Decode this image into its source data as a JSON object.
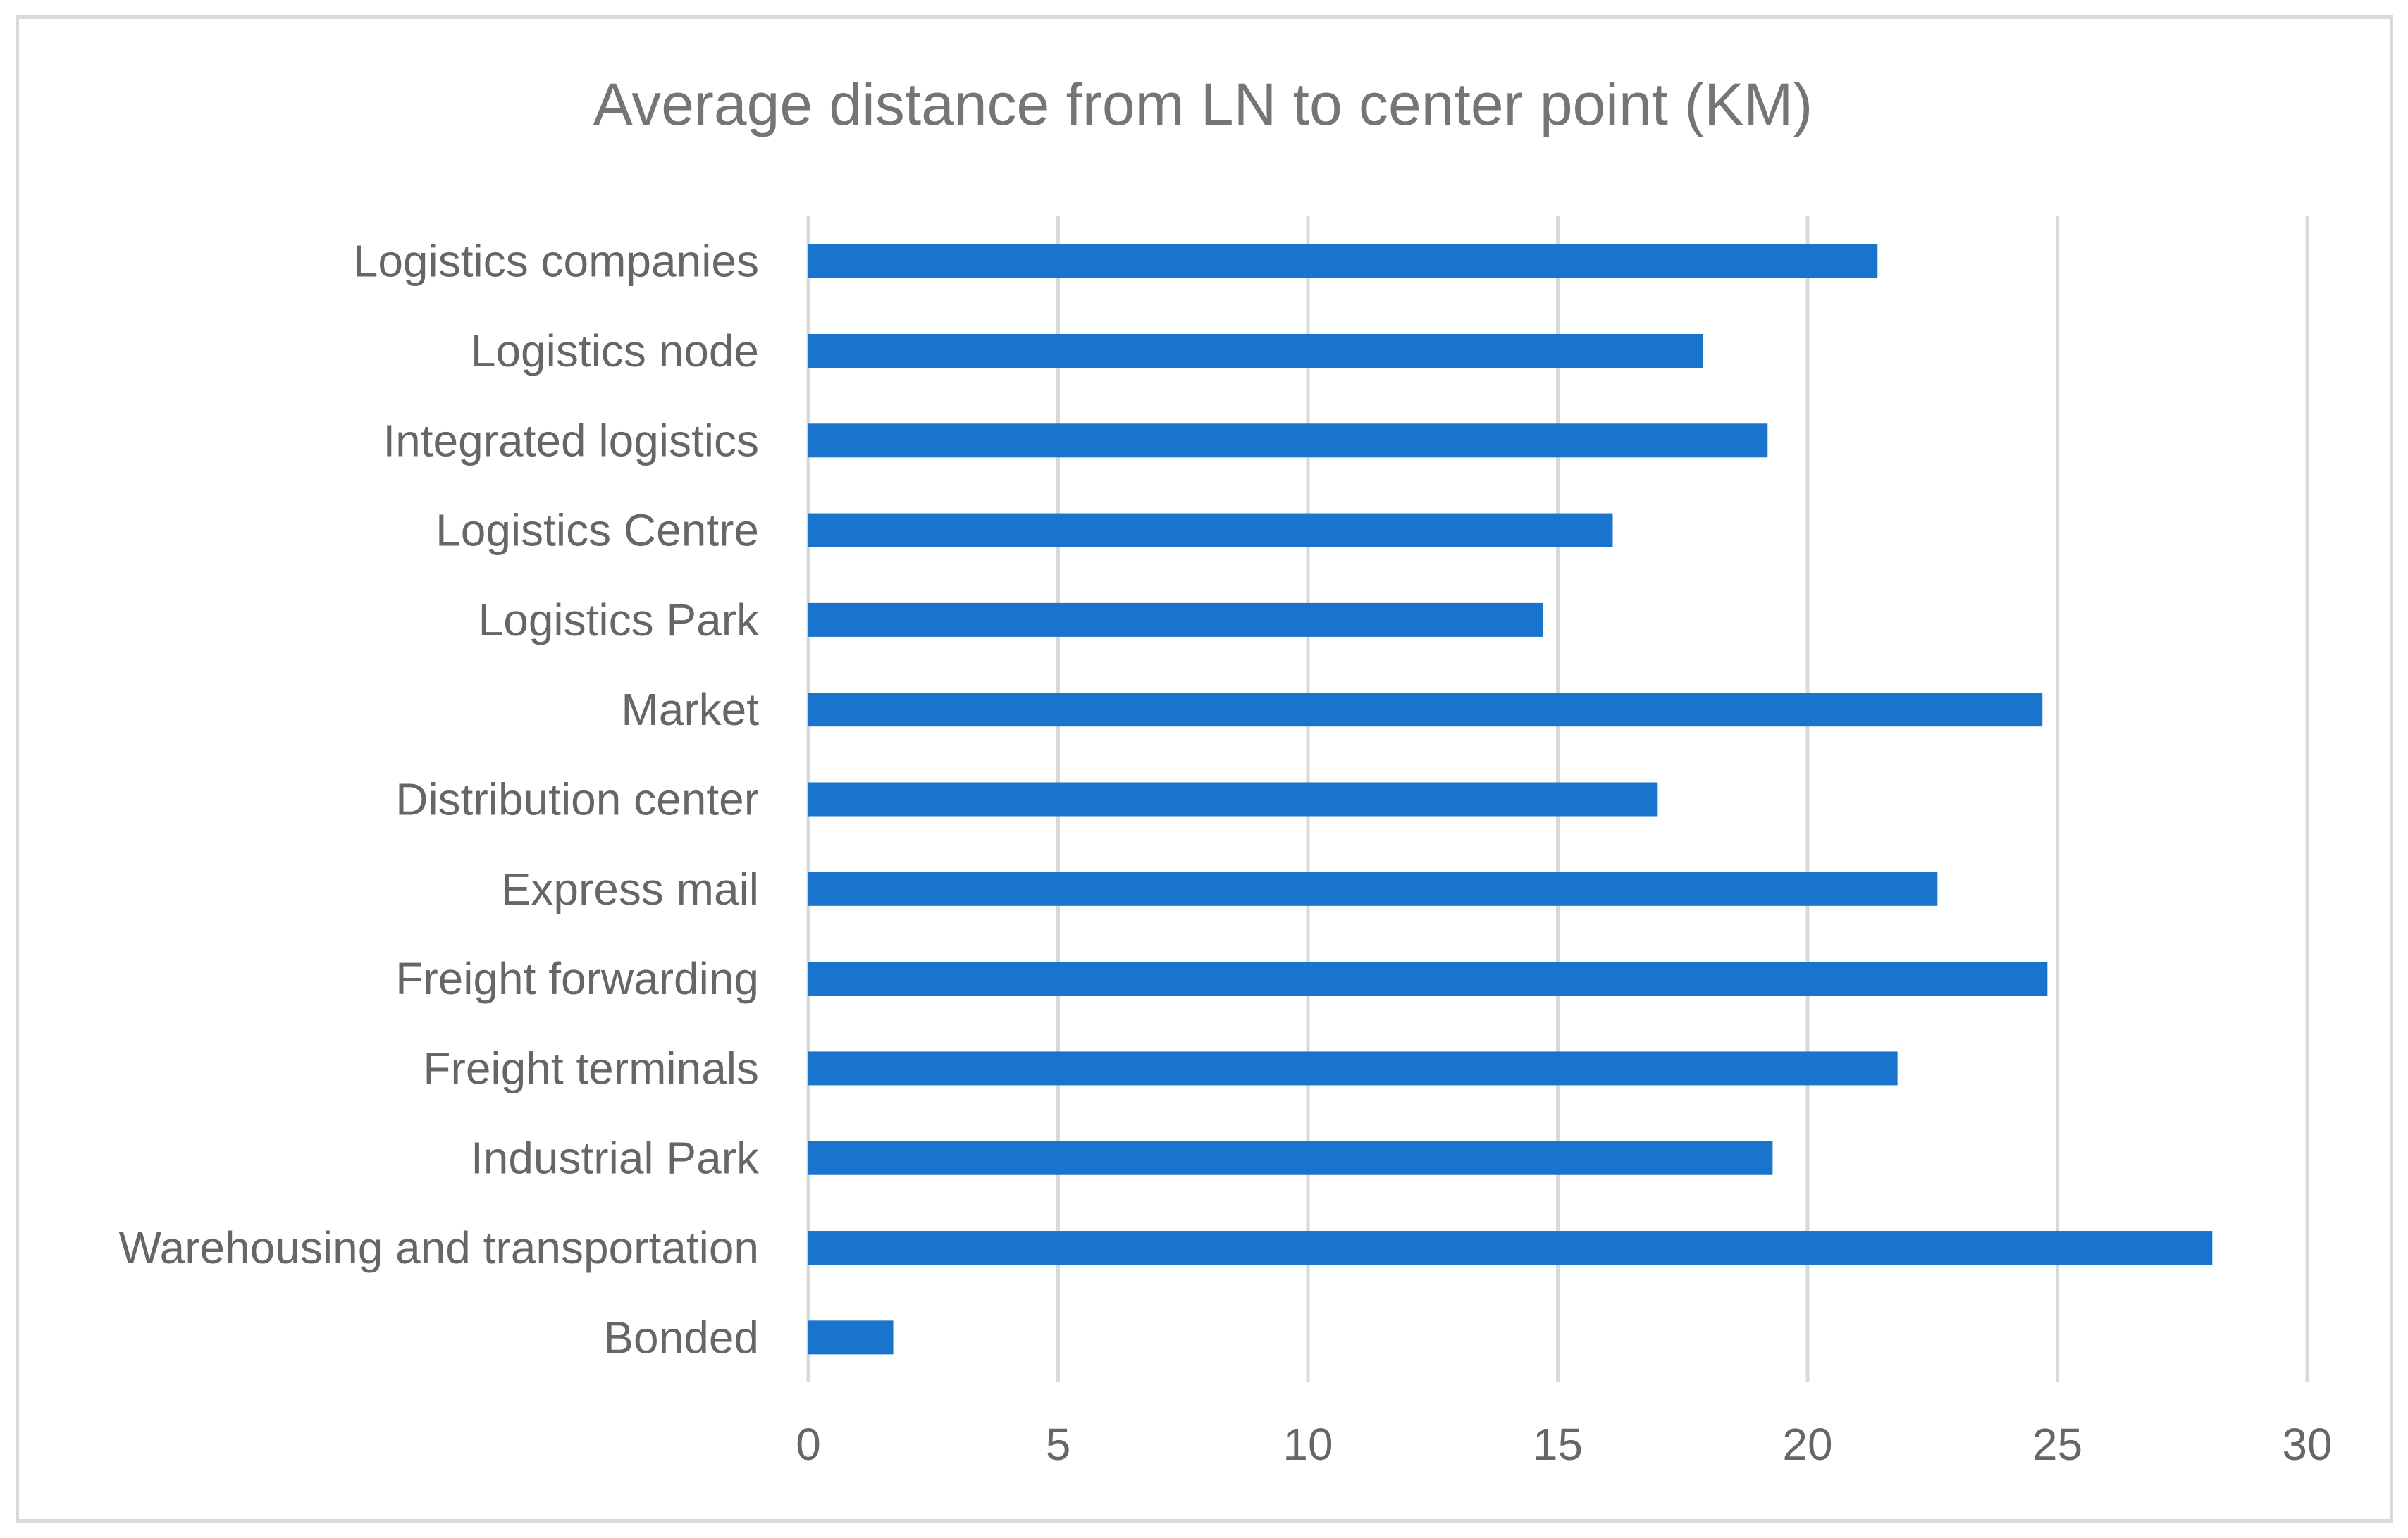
{
  "chart_data": {
    "type": "bar",
    "orientation": "horizontal",
    "title": "Average distance from LN to center point (KM)",
    "xlabel": "",
    "ylabel": "",
    "xlim": [
      0,
      30
    ],
    "x_ticks": [
      0,
      5,
      10,
      15,
      20,
      25,
      30
    ],
    "grid": true,
    "legend": "none",
    "bar_color": "#1874CD",
    "categories": [
      "Logistics companies",
      "Logistics node",
      "Integrated logistics",
      "Logistics Centre",
      "Logistics Park",
      "Market",
      "Distribution center",
      "Express mail",
      "Freight forwarding",
      "Freight terminals",
      "Industrial Park",
      "Warehousing and transportation",
      "Bonded"
    ],
    "values": [
      21.4,
      17.9,
      19.2,
      16.1,
      14.7,
      24.7,
      17.0,
      22.6,
      24.8,
      21.8,
      19.3,
      28.1,
      1.7
    ]
  }
}
